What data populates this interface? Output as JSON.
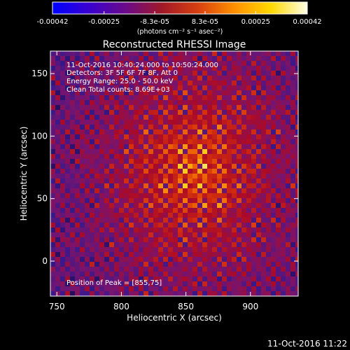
{
  "colorbar": {
    "tick_labels": [
      "-0.00042",
      "-0.00025",
      "-8.3e-05",
      "8.3e-05",
      "0.00025",
      "0.00042"
    ],
    "tick_values": [
      -0.00042,
      -0.00025,
      -8.3e-05,
      8.3e-05,
      0.00025,
      0.00042
    ],
    "range": [
      -0.00042,
      0.00042
    ],
    "unit_label": "(photons cm⁻² s⁻¹ asec⁻²)",
    "colors": [
      "#0000ff",
      "#3a00d0",
      "#6a0a8a",
      "#a01828",
      "#d84010",
      "#ff9000",
      "#ffd800",
      "#ffffe8"
    ]
  },
  "chart_data": {
    "type": "heatmap",
    "title": "Reconstructed RHESSI Image",
    "xlabel": "Heliocentric X (arcsec)",
    "ylabel": "Heliocentric Y (arcsec)",
    "xlim": [
      745,
      937
    ],
    "ylim": [
      -28,
      168
    ],
    "x_ticks": [
      750,
      800,
      850,
      900
    ],
    "y_ticks": [
      0,
      50,
      100,
      150
    ],
    "annotations": [
      "11-Oct-2016 10:40:24.000 to 10:50:24.000",
      "Detectors: 3F 5F 6F 7F 8F, Att 0",
      "Energy Range: 25.0 - 50.0 keV",
      "Clean    Total counts: 8.69E+03"
    ],
    "peak_label": "Position of Peak = [855,75]",
    "peak": [
      855,
      75
    ]
  },
  "footer": {
    "timestamp": "11-Oct-2016 11:22"
  }
}
